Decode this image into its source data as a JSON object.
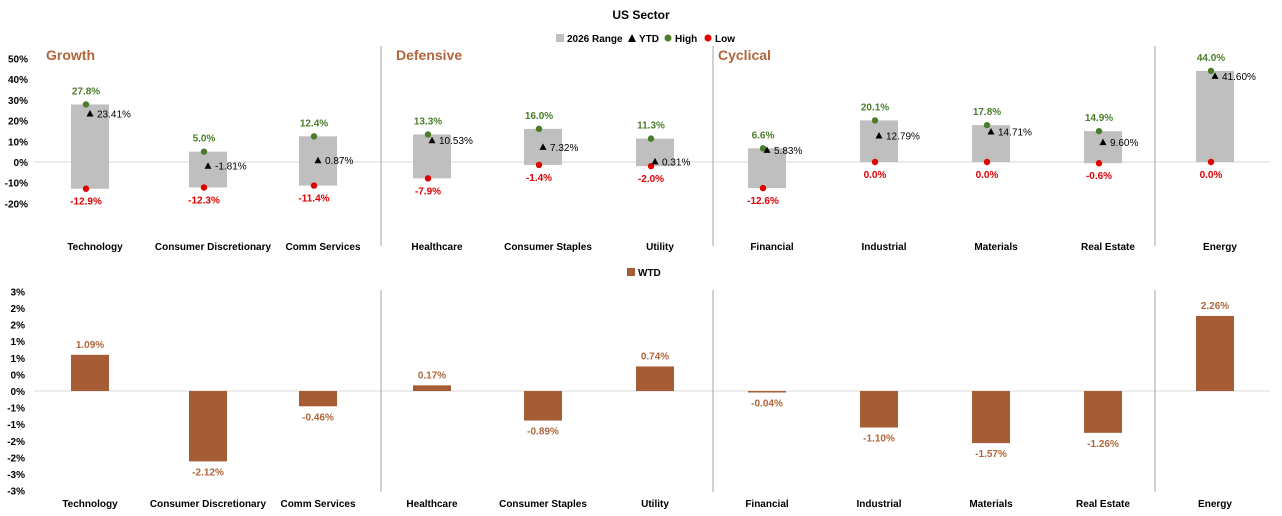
{
  "chart_data": [
    {
      "type": "bar",
      "title": "US Sector",
      "legend": {
        "placement": "top-center",
        "entries": [
          {
            "label": "2026 Range",
            "color": "#bfbfbf"
          },
          {
            "label": "YTD",
            "color": "#000000"
          },
          {
            "label": "High",
            "color": "#4a7d2a"
          },
          {
            "label": "Low",
            "color": "#e00000"
          }
        ]
      },
      "groups": [
        {
          "label": "Growth",
          "start": 0,
          "end": 2
        },
        {
          "label": "Defensive",
          "start": 3,
          "end": 5
        },
        {
          "label": "Cyclical",
          "start": 6,
          "end": 9
        },
        {
          "label": "",
          "start": 10,
          "end": 10
        }
      ],
      "categories": [
        "Technology",
        "Consumer Discretionary",
        "Comm Services",
        "Healthcare",
        "Consumer Staples",
        "Utility",
        "Financial",
        "Industrial",
        "Materials",
        "Real Estate",
        "Energy"
      ],
      "series": [
        {
          "name": "High",
          "values": [
            27.8,
            5.0,
            12.4,
            13.3,
            16.0,
            11.3,
            6.6,
            20.1,
            17.8,
            14.9,
            44.0
          ],
          "labels": [
            "27.8%",
            "5.0%",
            "12.4%",
            "13.3%",
            "16.0%",
            "11.3%",
            "6.6%",
            "20.1%",
            "17.8%",
            "14.9%",
            "44.0%"
          ]
        },
        {
          "name": "Low",
          "values": [
            -12.9,
            -12.3,
            -11.4,
            -7.9,
            -1.4,
            -2.0,
            -12.6,
            0.0,
            0.0,
            -0.6,
            0.0
          ],
          "labels": [
            "-12.9%",
            "-12.3%",
            "-11.4%",
            "-7.9%",
            "-1.4%",
            "-2.0%",
            "-12.6%",
            "0.0%",
            "0.0%",
            "-0.6%",
            "0.0%"
          ]
        },
        {
          "name": "YTD",
          "values": [
            23.41,
            -1.81,
            0.87,
            10.53,
            7.32,
            0.31,
            5.83,
            12.79,
            14.71,
            9.6,
            41.6
          ],
          "labels": [
            "23.41%",
            "-1.81%",
            "0.87%",
            "10.53%",
            "7.32%",
            "0.31%",
            "5.83%",
            "12.79%",
            "14.71%",
            "9.60%",
            "41.60%"
          ]
        }
      ],
      "y_ticks": [
        50,
        40,
        30,
        20,
        10,
        0,
        -10,
        -20
      ],
      "y_tick_labels": [
        "50%",
        "40%",
        "30%",
        "20%",
        "10%",
        "0%",
        "-10%",
        "-20%"
      ],
      "ylim": [
        -20,
        50
      ],
      "grid": false,
      "colors": {
        "range": "#bfbfbf",
        "ytd": "#000000",
        "high": "#4a7d2a",
        "low": "#e00000",
        "group_label": "#b0653a"
      }
    },
    {
      "type": "bar",
      "legend": {
        "placement": "top-center",
        "entries": [
          {
            "label": "WTD",
            "color": "#a65c34"
          }
        ]
      },
      "categories": [
        "Technology",
        "Consumer Discretionary",
        "Comm Services",
        "Healthcare",
        "Consumer Staples",
        "Utility",
        "Financial",
        "Industrial",
        "Materials",
        "Real Estate",
        "Energy"
      ],
      "series": [
        {
          "name": "WTD",
          "values": [
            1.09,
            -2.12,
            -0.46,
            0.17,
            -0.89,
            0.74,
            -0.04,
            -1.1,
            -1.57,
            -1.26,
            2.26
          ],
          "labels": [
            "1.09%",
            "-2.12%",
            "-0.46%",
            "0.17%",
            "-0.89%",
            "0.74%",
            "-0.04%",
            "-1.10%",
            "-1.57%",
            "-1.26%",
            "2.26%"
          ]
        }
      ],
      "y_ticks": [
        3,
        2.5,
        2,
        1.5,
        1,
        0.5,
        0,
        -0.5,
        -1,
        -1.5,
        -2,
        -2.5,
        -3
      ],
      "y_tick_labels": [
        "3%",
        "2%",
        "2%",
        "1%",
        "1%",
        "0%",
        "0%",
        "-1%",
        "-1%",
        "-2%",
        "-2%",
        "-3%",
        "-3%"
      ],
      "ylim": [
        -3,
        3
      ],
      "grid": false,
      "colors": {
        "bar": "#a65c34",
        "label": "#b0653a"
      }
    }
  ]
}
